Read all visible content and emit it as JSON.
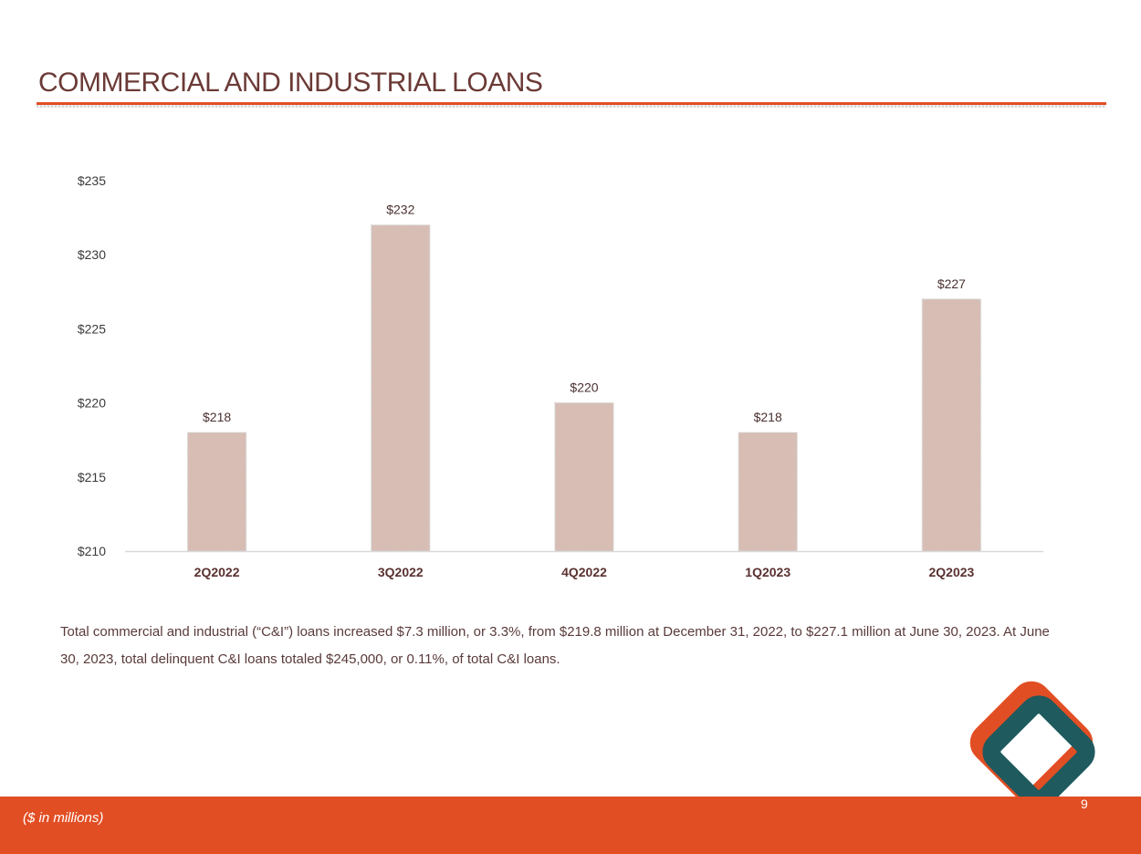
{
  "slide": {
    "title": "COMMERCIAL AND INDUSTRIAL LOANS",
    "summary": "Total commercial and industrial (“C&I”) loans increased $7.3 million, or 3.3%, from $219.8 million at December 31, 2022, to $227.1 million at June 30, 2023. At June 30, 2023, total delinquent C&I loans totaled $245,000, or 0.11%, of total C&I loans.",
    "footnote": "($ in millions)",
    "page_number": "9"
  },
  "colors": {
    "accent": "#e24e24",
    "bar_fill": "#d7bdb3",
    "title_text": "#6b3a36",
    "logo_orange": "#e24e24",
    "logo_teal": "#1f5a5e"
  },
  "logo": {
    "icon": "diamond-logo-icon"
  },
  "chart_data": {
    "type": "bar",
    "categories": [
      "2Q2022",
      "3Q2022",
      "4Q2022",
      "1Q2023",
      "2Q2023"
    ],
    "values": [
      218,
      232,
      220,
      218,
      227
    ],
    "data_labels": [
      "$218",
      "$232",
      "$220",
      "$218",
      "$227"
    ],
    "yticks": [
      210,
      215,
      220,
      225,
      230,
      235
    ],
    "ytick_labels": [
      "$210",
      "$215",
      "$220",
      "$225",
      "$230",
      "$235"
    ],
    "ylim": [
      210,
      235
    ],
    "title": "",
    "xlabel": "",
    "ylabel": "",
    "grid": false,
    "legend": "none"
  }
}
